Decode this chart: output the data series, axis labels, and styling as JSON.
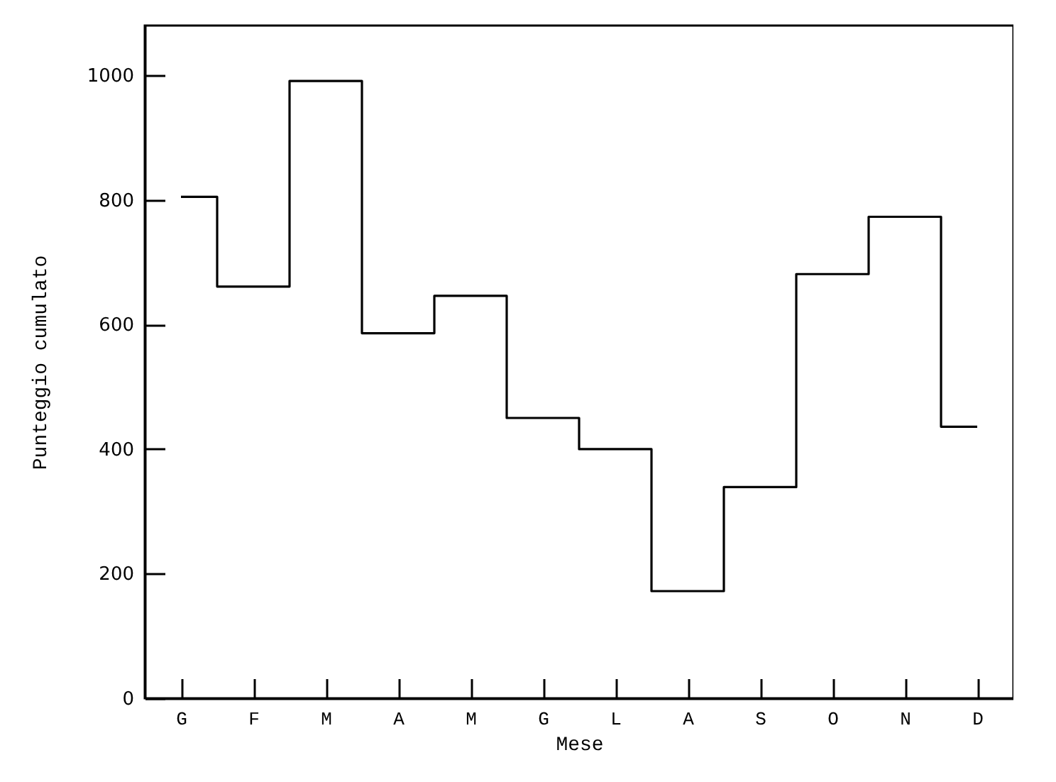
{
  "chart_data": {
    "type": "step",
    "xlabel": "Mese",
    "ylabel": "Punteggio cumulato",
    "categories": [
      "G",
      "F",
      "M",
      "A",
      "M",
      "G",
      "L",
      "A",
      "S",
      "O",
      "N",
      "D"
    ],
    "values": [
      805,
      661,
      991,
      586,
      646,
      450,
      400,
      172,
      339,
      681,
      773,
      436
    ],
    "color": "#000000",
    "ylim": [
      0,
      1080
    ],
    "yticks": [
      0,
      200,
      400,
      600,
      800,
      1000
    ],
    "grid": false
  }
}
